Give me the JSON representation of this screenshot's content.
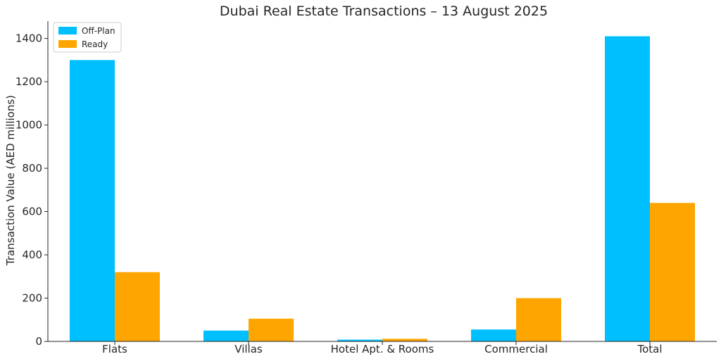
{
  "chart_data": {
    "type": "bar",
    "title": "Dubai Real Estate Transactions – 13 August 2025",
    "xlabel": "",
    "ylabel": "Transaction Value (AED millions)",
    "categories": [
      "Flats",
      "Villas",
      "Hotel Apt. & Rooms",
      "Commercial",
      "Total"
    ],
    "series": [
      {
        "name": "Off-Plan",
        "color": "#00BFFF",
        "values": [
          1300,
          50,
          8,
          55,
          1410
        ]
      },
      {
        "name": "Ready",
        "color": "#FFA500",
        "values": [
          320,
          105,
          12,
          200,
          640
        ]
      }
    ],
    "ylim": [
      0,
      1480
    ],
    "yticks": [
      0,
      200,
      400,
      600,
      800,
      1000,
      1200,
      1400
    ],
    "legend": "top-left",
    "grid": false
  }
}
